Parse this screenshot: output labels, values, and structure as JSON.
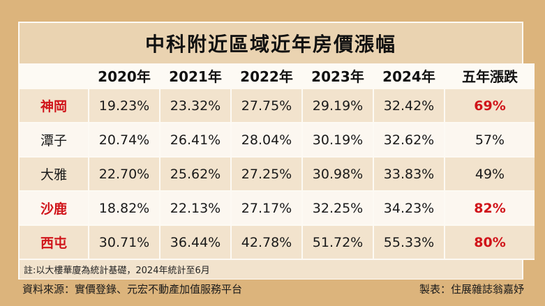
{
  "title": "中科附近區域近年房價漲幅",
  "table": {
    "headers": [
      "",
      "2020年",
      "2021年",
      "2022年",
      "2023年",
      "2024年",
      "五年漲跌"
    ],
    "rows": [
      {
        "area": "神岡",
        "values": [
          "19.23%",
          "23.32%",
          "27.75%",
          "29.19%",
          "32.42%"
        ],
        "total": "69%",
        "highlight": true
      },
      {
        "area": "潭子",
        "values": [
          "20.74%",
          "26.41%",
          "28.04%",
          "30.19%",
          "32.62%"
        ],
        "total": "57%",
        "highlight": false
      },
      {
        "area": "大雅",
        "values": [
          "22.70%",
          "25.62%",
          "27.25%",
          "30.98%",
          "33.83%"
        ],
        "total": "49%",
        "highlight": false
      },
      {
        "area": "沙鹿",
        "values": [
          "18.82%",
          "22.13%",
          "27.17%",
          "32.25%",
          "34.23%"
        ],
        "total": "82%",
        "highlight": true
      },
      {
        "area": "西屯",
        "values": [
          "30.71%",
          "36.44%",
          "42.78%",
          "51.72%",
          "55.33%"
        ],
        "total": "80%",
        "highlight": true
      }
    ]
  },
  "note": "註:以大樓華廈為統計基礎，2024年統計至6月",
  "footer": {
    "source": "資料來源：實價登錄、元宏不動產加值服務平台",
    "credit": "製表：住展雜誌翁嘉妤"
  },
  "colors": {
    "background": "#dcb47c",
    "title_bar": "#ead3b1",
    "row_shade": "#f2e3cd",
    "row_plain": "#fcf7f0",
    "highlight": "#d0141a"
  }
}
